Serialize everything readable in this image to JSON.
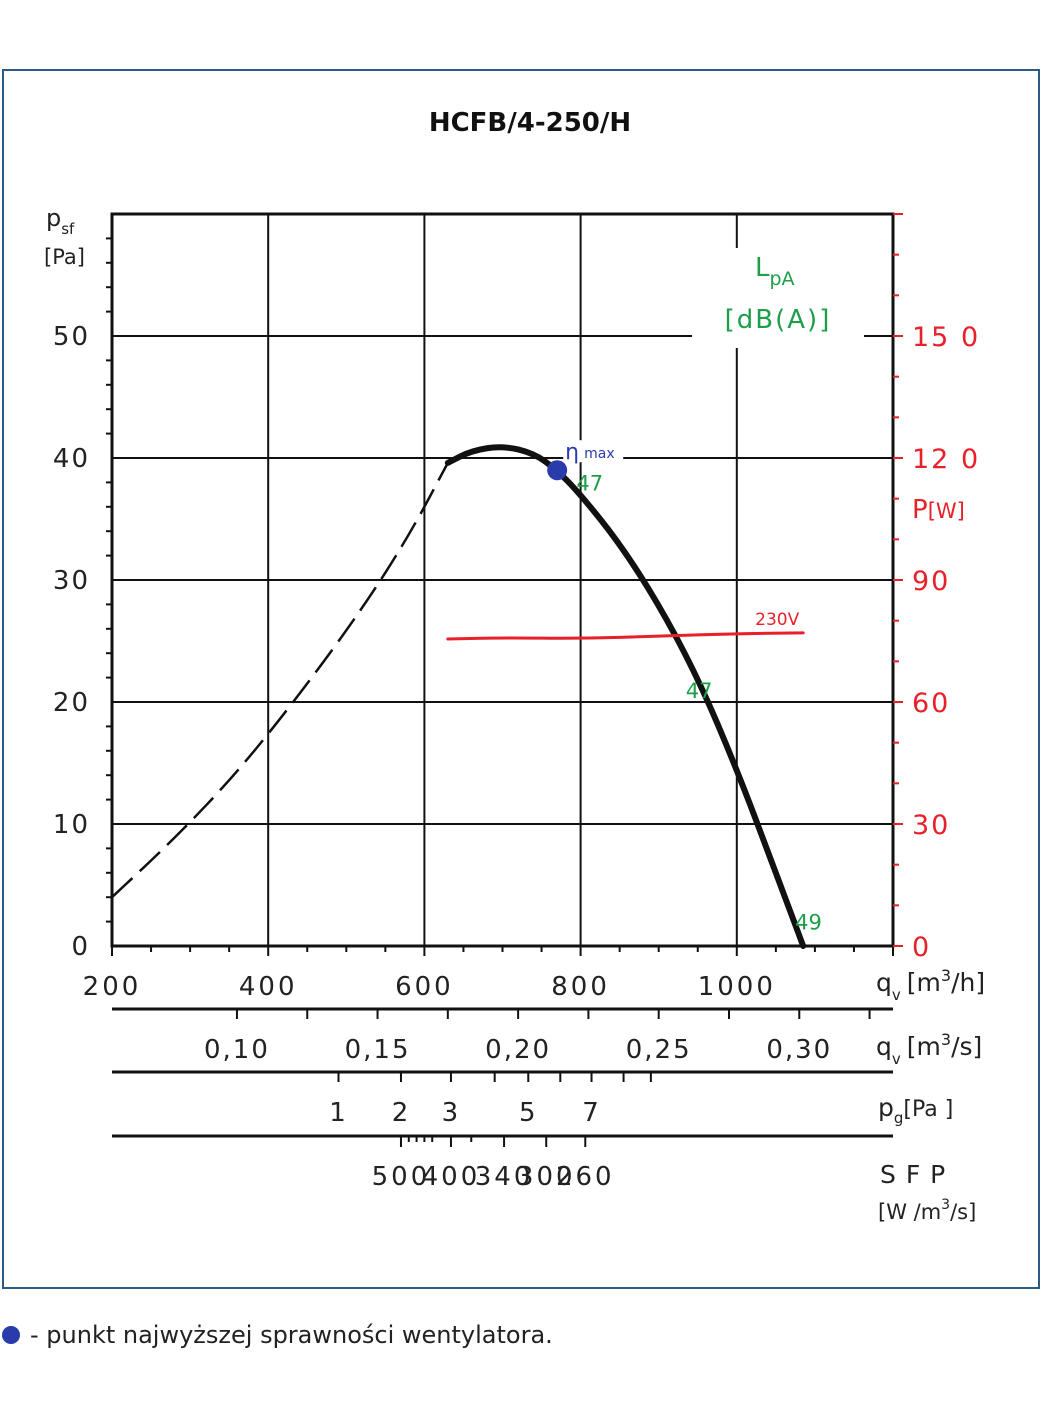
{
  "colors": {
    "frame": "#2a5a86",
    "curve": "#111111",
    "power": "#e8202a",
    "noise": "#1f9e4a",
    "eta": "#2a3bab"
  },
  "footnote": {
    "marker": "blue-dot",
    "text": "- punkt najwyższej sprawności wentylatora."
  },
  "chart_data": {
    "type": "line",
    "title": "HCFB/4-250/H",
    "xlabel": "qv [m3/h]",
    "ylabel": "psf [Pa]",
    "xlim": [
      200,
      1200
    ],
    "ylim": [
      0,
      60
    ],
    "grid": true,
    "x_ticks": [
      "200",
      "400",
      "600",
      "800",
      "1000"
    ],
    "x_tick_values": [
      200,
      400,
      600,
      800,
      1000
    ],
    "y_ticks": [
      "0",
      "10",
      "20",
      "30",
      "40",
      "50"
    ],
    "y_tick_values": [
      0,
      10,
      20,
      30,
      40,
      50
    ],
    "axis_labels": {
      "y_main": "p",
      "y_main_sub": "sf",
      "y_main_unit": "[Pa]",
      "x_main": "q",
      "x_main_sub": "v",
      "x_main_unit_pre": "[m",
      "x_main_unit_sup": "3",
      "x_main_unit_post": "/h]"
    },
    "power_axis": {
      "label": "P",
      "unit": "[W]",
      "ticks": [
        "0",
        "30",
        "60",
        "90",
        "12 0",
        "15 0"
      ],
      "tick_values": [
        0,
        30,
        60,
        90,
        120,
        150
      ],
      "range": [
        0,
        180
      ]
    },
    "series": [
      {
        "role": "pressure-stable",
        "style": "solid",
        "points": [
          [
            630,
            39.6
          ],
          [
            660,
            40.6
          ],
          [
            700,
            41.0
          ],
          [
            740,
            40.4
          ],
          [
            770,
            39.0
          ],
          [
            800,
            37.0
          ],
          [
            850,
            33.0
          ],
          [
            900,
            28.0
          ],
          [
            950,
            22.0
          ],
          [
            1000,
            14.5
          ],
          [
            1050,
            6.0
          ],
          [
            1085,
            0.0
          ]
        ]
      },
      {
        "role": "pressure-unstable",
        "style": "dashed",
        "points": [
          [
            200,
            4.0
          ],
          [
            280,
            8.8
          ],
          [
            360,
            14.2
          ],
          [
            440,
            20.6
          ],
          [
            520,
            27.6
          ],
          [
            580,
            33.6
          ],
          [
            630,
            39.6
          ]
        ]
      },
      {
        "role": "power",
        "name": "230V",
        "style": "solid",
        "points": [
          [
            630,
            75.5
          ],
          [
            700,
            75.8
          ],
          [
            800,
            75.6
          ],
          [
            900,
            76.2
          ],
          [
            1000,
            76.8
          ],
          [
            1085,
            77.0
          ]
        ]
      }
    ],
    "eta_max": {
      "x": 770,
      "y": 39.0,
      "label": "η",
      "label_sup": "max"
    },
    "noise_labels": [
      {
        "x": 810,
        "y": 38.0,
        "text": "47"
      },
      {
        "x": 950,
        "y": 21.0,
        "text": "47"
      },
      {
        "x": 1090,
        "y": 2.0,
        "text": "49"
      }
    ],
    "noise_axis": {
      "label": "L",
      "label_sub": "pA",
      "unit": "[dB(A)]"
    },
    "secondary_axes": [
      {
        "label": "q",
        "label_sub": "v",
        "unit_pre": "[m",
        "unit_sup": "3",
        "unit_post": "/s]",
        "ticks": [
          "0,10",
          "0,15",
          "0,20",
          "0,25",
          "0,30"
        ],
        "tick_values": [
          0.1,
          0.15,
          0.2,
          0.25,
          0.3
        ]
      },
      {
        "label": "p",
        "label_sub": "g",
        "unit": "[Pa ]",
        "ticks": [
          "1",
          "2",
          "3",
          "5",
          "7"
        ],
        "tick_positions_m3h": [
          490,
          570,
          634,
          733,
          814
        ]
      },
      {
        "label": "S F P",
        "unit_pre": "[W /m",
        "unit_sup": "3",
        "unit_post": "/s]",
        "ticks": [
          "500",
          "400",
          "340",
          "300",
          "260"
        ],
        "tick_positions_m3h": [
          570,
          634,
          702,
          756,
          806
        ]
      }
    ]
  }
}
